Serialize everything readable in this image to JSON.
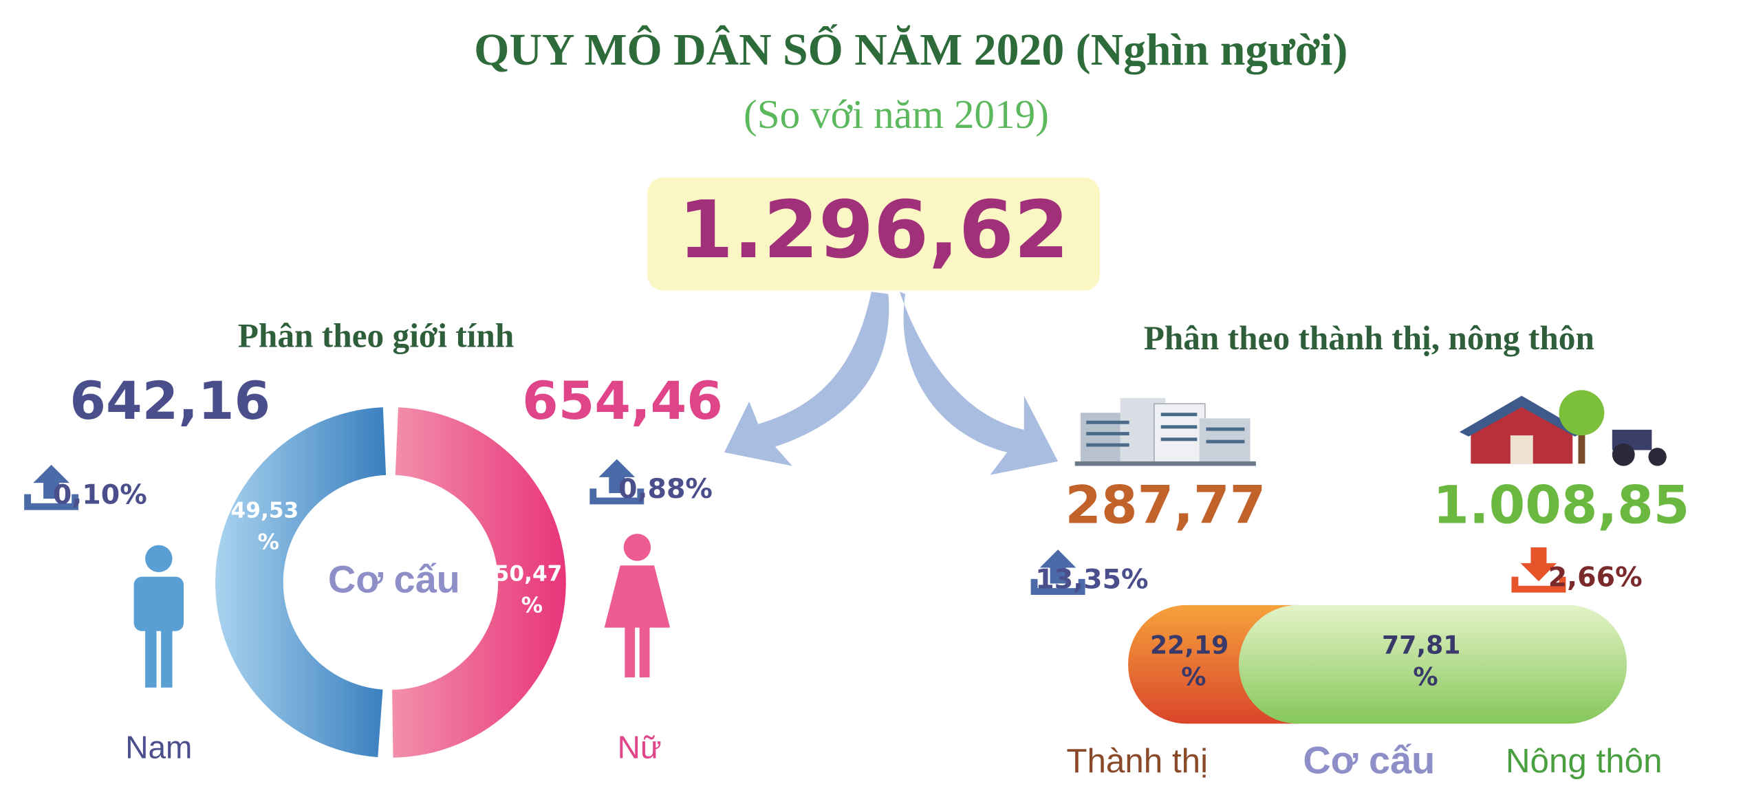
{
  "header": {
    "title": "QUY MÔ DÂN SỐ NĂM 2020 (Nghìn người)",
    "subtitle": "(So với năm 2019)"
  },
  "total": "1.296,62",
  "gender": {
    "title": "Phân theo giới tính",
    "center_label": "Cơ cấu",
    "groups": [
      {
        "name": "Nam",
        "population": "642,16",
        "change": "0,10%",
        "direction": "up",
        "share": 49.53,
        "share_label": "49,53 %",
        "color": "#4a4f8c"
      },
      {
        "name": "Nữ",
        "population": "654,46",
        "change": "0,88%",
        "direction": "up",
        "share": 50.47,
        "share_label": "50,47 %",
        "color": "#e0458a"
      }
    ]
  },
  "area": {
    "title": "Phân theo thành thị, nông thôn",
    "center_label": "Cơ cấu",
    "groups": [
      {
        "name": "Thành thị",
        "population": "287,77",
        "change": "13,35%",
        "direction": "up",
        "share": 22.19,
        "share_label": "22,19 %",
        "color": "#c0622a"
      },
      {
        "name": "Nông thôn",
        "population": "1.008,85",
        "change": "2,66%",
        "direction": "down",
        "share": 77.81,
        "share_label": "77,81 %",
        "color": "#6ab840"
      }
    ]
  }
}
